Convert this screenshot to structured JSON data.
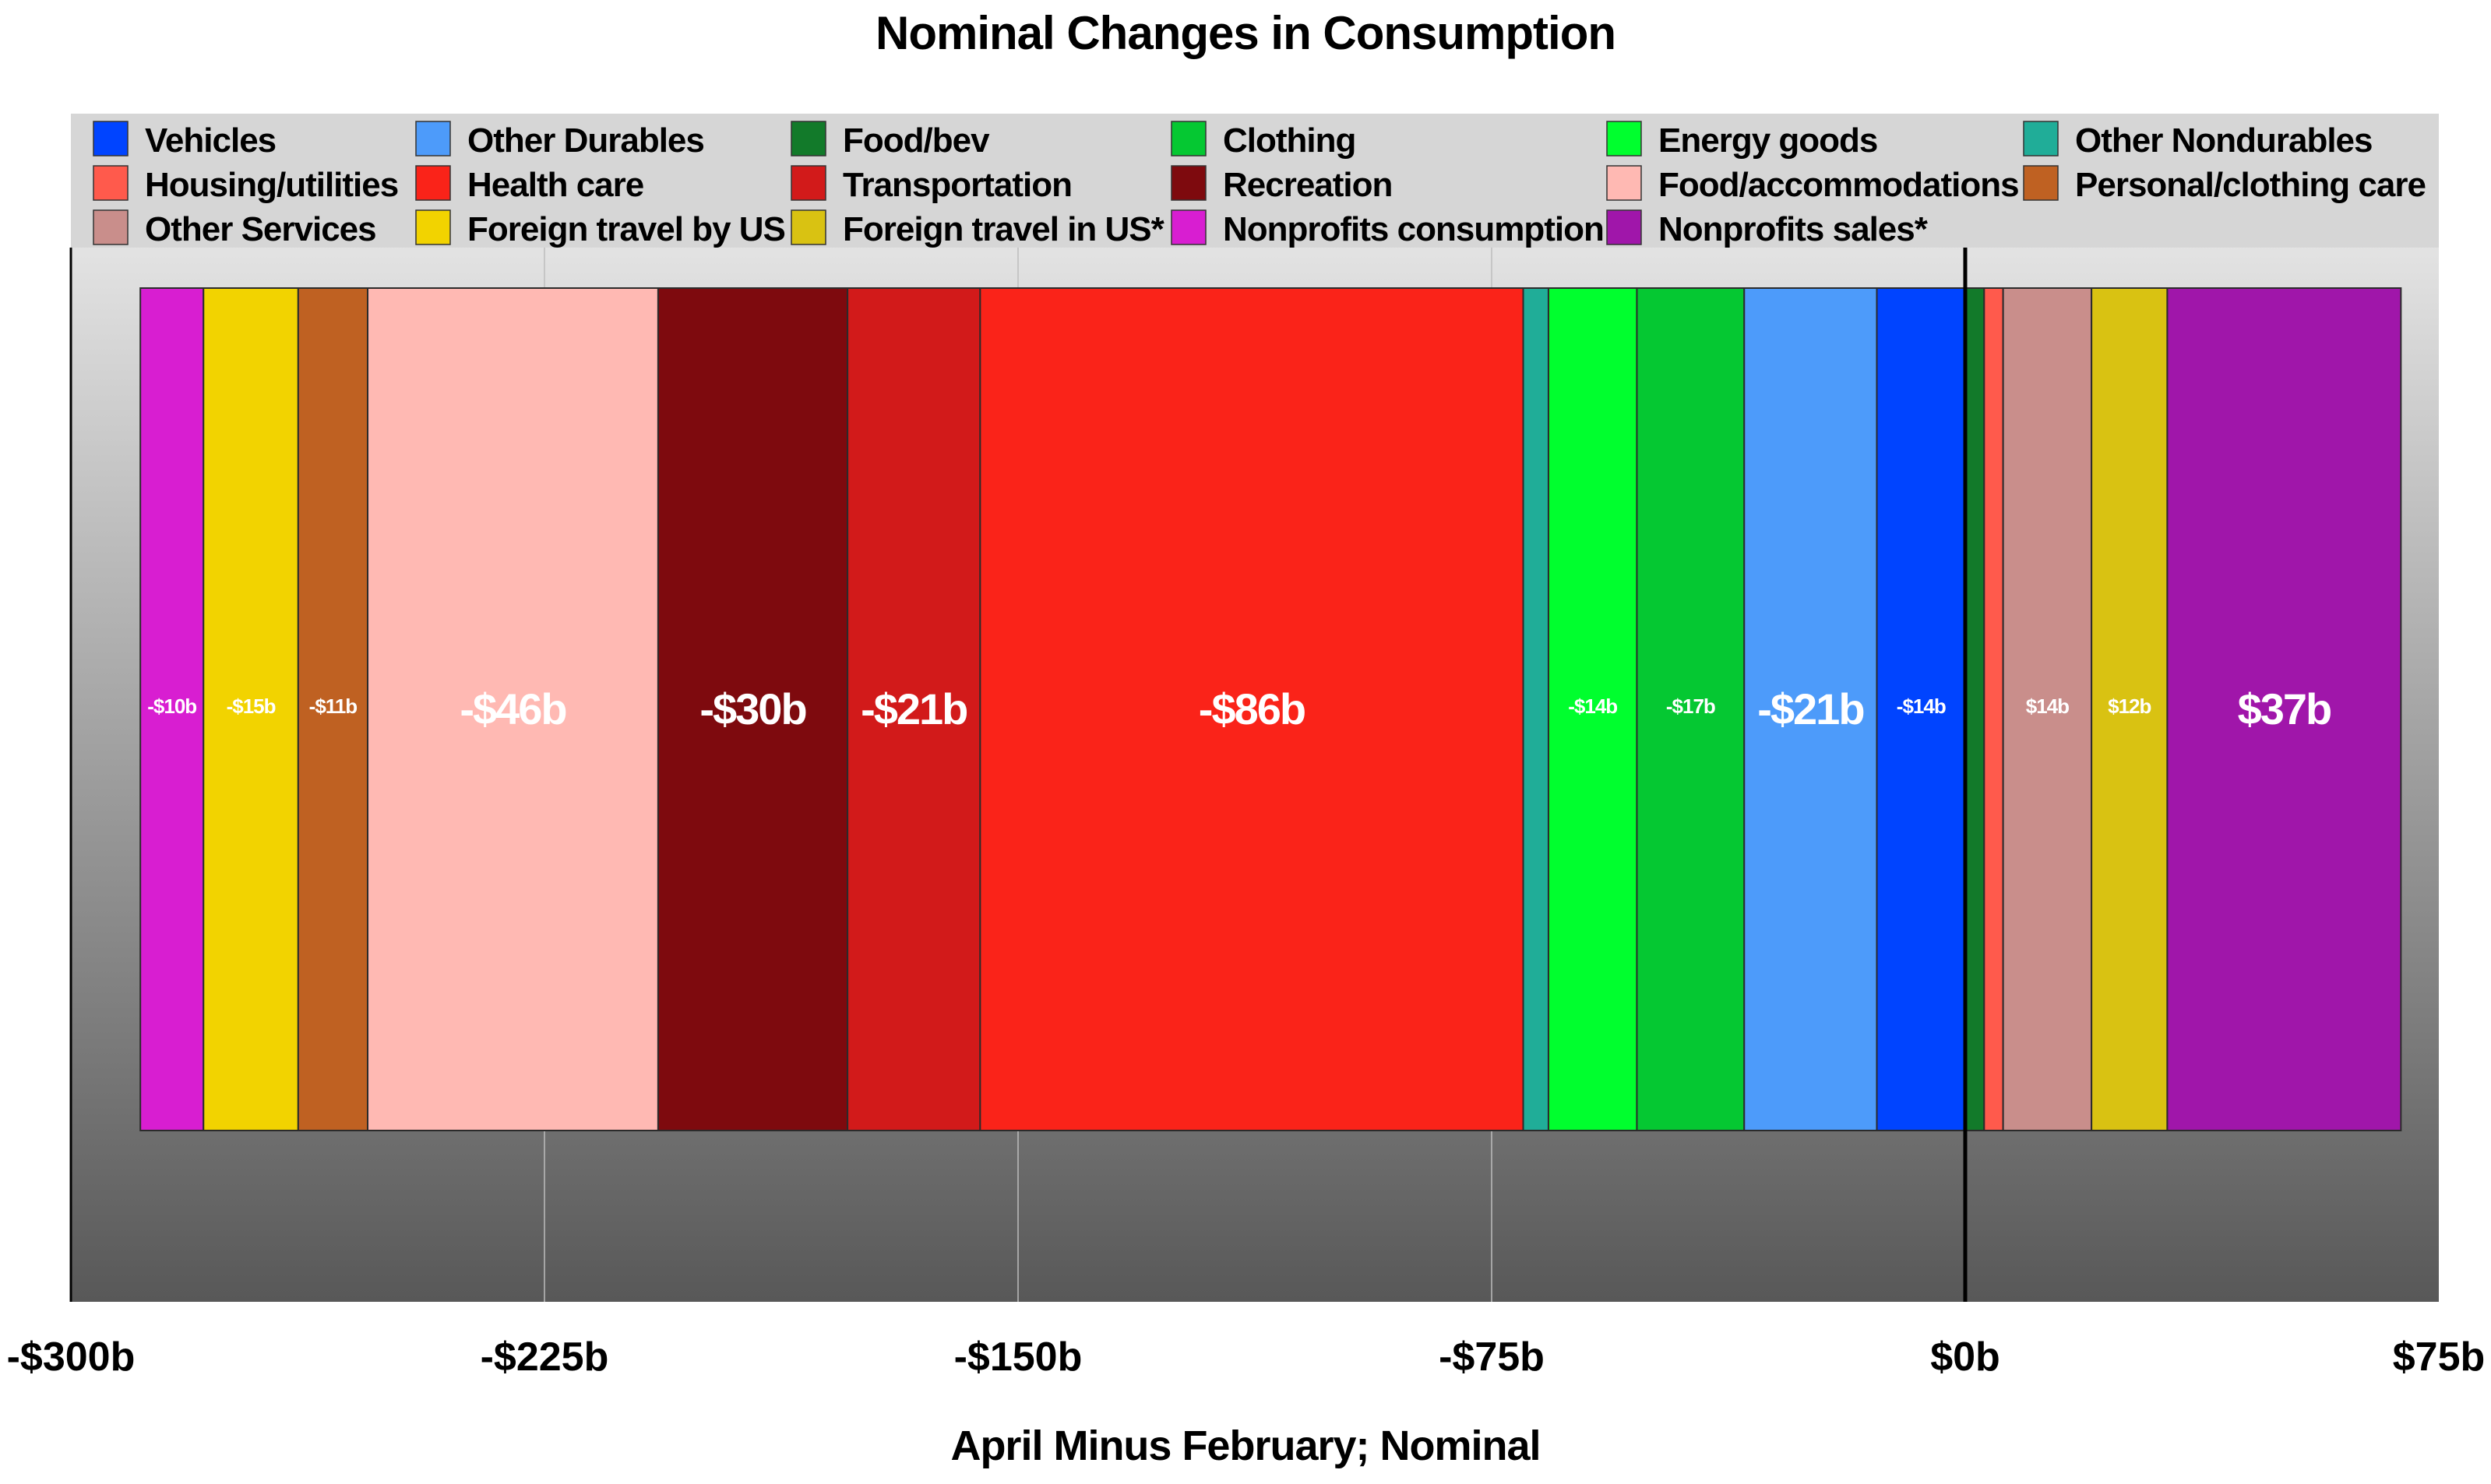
{
  "title": "Nominal Changes in Consumption",
  "chart_data": {
    "type": "bar",
    "orientation": "stacked-horizontal-segments",
    "title": "Nominal Changes in Consumption",
    "xlabel": "April Minus February; Nominal",
    "ylabel": "",
    "xlim": [
      -300,
      75
    ],
    "x_ticks": [
      -300,
      -225,
      -150,
      -75,
      0,
      75
    ],
    "x_tick_labels": [
      "-$300b",
      "-$225b",
      "-$150b",
      "-$75b",
      "$0b",
      "$75b"
    ],
    "grid": true,
    "legend_position": "top",
    "legend": [
      {
        "name": "Vehicles",
        "color": "#0044ff"
      },
      {
        "name": "Other Durables",
        "color": "#4d9bfa"
      },
      {
        "name": "Food/bev",
        "color": "#127a2a"
      },
      {
        "name": "Clothing",
        "color": "#05c832"
      },
      {
        "name": "Energy goods",
        "color": "#00ff2e"
      },
      {
        "name": "Other Nondurables",
        "color": "#20ad98"
      },
      {
        "name": "Housing/utilities",
        "color": "#ff5a4c"
      },
      {
        "name": "Health care",
        "color": "#fa2319"
      },
      {
        "name": "Transportation",
        "color": "#d21a1a"
      },
      {
        "name": "Recreation",
        "color": "#7e0a0e"
      },
      {
        "name": "Food/accommodations",
        "color": "#ffb9b3"
      },
      {
        "name": "Personal/clothing care",
        "color": "#bf6122"
      },
      {
        "name": "Other Services",
        "color": "#c98e8b"
      },
      {
        "name": "Foreign travel by US",
        "color": "#f2d300"
      },
      {
        "name": "Foreign travel in US*",
        "color": "#d9c212"
      },
      {
        "name": "Nonprofits consumption",
        "color": "#d81ed1"
      },
      {
        "name": "Nonprofits sales*",
        "color": "#a016aa"
      }
    ],
    "series": [
      {
        "name": "Nonprofits consumption",
        "value": -10,
        "label": "-$10b",
        "color": "#d81ed1"
      },
      {
        "name": "Foreign travel by US",
        "value": -15,
        "label": "-$15b",
        "color": "#f2d300"
      },
      {
        "name": "Personal/clothing care",
        "value": -11,
        "label": "-$11b",
        "color": "#bf6122"
      },
      {
        "name": "Food/accommodations",
        "value": -46,
        "label": "-$46b",
        "color": "#ffb9b3"
      },
      {
        "name": "Recreation",
        "value": -30,
        "label": "-$30b",
        "color": "#7e0a0e"
      },
      {
        "name": "Transportation",
        "value": -21,
        "label": "-$21b",
        "color": "#d21a1a"
      },
      {
        "name": "Health care",
        "value": -86,
        "label": "-$86b",
        "color": "#fa2319"
      },
      {
        "name": "Other Nondurables",
        "value": -4,
        "label": "",
        "color": "#20ad98"
      },
      {
        "name": "Energy goods",
        "value": -14,
        "label": "-$14b",
        "color": "#00ff2e"
      },
      {
        "name": "Clothing",
        "value": -17,
        "label": "-$17b",
        "color": "#05c832"
      },
      {
        "name": "Other Durables",
        "value": -21,
        "label": "-$21b",
        "color": "#4d9bfa"
      },
      {
        "name": "Vehicles",
        "value": -14,
        "label": "-$14b",
        "color": "#0044ff"
      },
      {
        "name": "Food/bev",
        "value": 3,
        "label": "",
        "color": "#127a2a"
      },
      {
        "name": "Housing/utilities",
        "value": 3,
        "label": "",
        "color": "#ff5a4c"
      },
      {
        "name": "Other Services",
        "value": 14,
        "label": "$14b",
        "color": "#c98e8b"
      },
      {
        "name": "Foreign travel in US*",
        "value": 12,
        "label": "$12b",
        "color": "#d9c212"
      },
      {
        "name": "Nonprofits sales*",
        "value": 37,
        "label": "$37b",
        "color": "#a016aa"
      }
    ]
  }
}
